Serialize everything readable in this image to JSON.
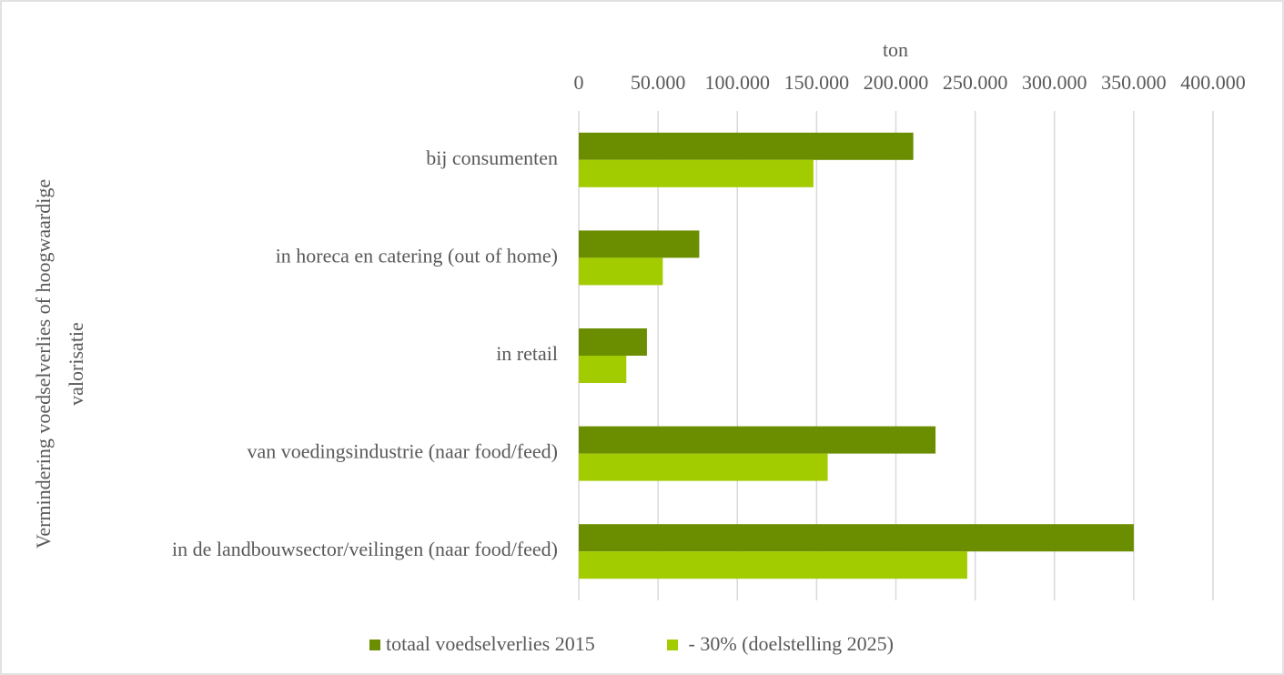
{
  "chart_data": {
    "type": "hbar",
    "x_label": "ton",
    "y_label": [
      "Vermindering  voedselverlies of hoogwaardige",
      "valorisatie"
    ],
    "categories": [
      "bij consumenten",
      "in horeca en catering (out of home)",
      "in retail",
      "van voedingsindustrie (naar food/feed)",
      "in de landbouwsector/veilingen (naar food/feed)"
    ],
    "series": [
      {
        "name": "totaal voedselverlies 2015",
        "color": "#6b8e00",
        "values": [
          211000,
          76000,
          43000,
          225000,
          350000
        ]
      },
      {
        "name": " - 30% (doelstelling 2025)",
        "color": "#a2cc00",
        "values": [
          148000,
          53000,
          30000,
          157000,
          245000
        ]
      }
    ],
    "xlim": [
      0,
      400000
    ],
    "xticks": [
      0,
      {
        "value": 50000,
        "label": "50.000"
      },
      {
        "value": 100000,
        "label": "100.000"
      },
      {
        "value": 150000,
        "label": "150.000"
      },
      {
        "value": 200000,
        "label": "200.000"
      },
      {
        "value": 250000,
        "label": "250.000"
      },
      {
        "value": 300000,
        "label": "300.000"
      },
      {
        "value": 350000,
        "label": "350.000"
      },
      {
        "value": 400000,
        "label": "400.000"
      }
    ],
    "grid": true,
    "legend": "bottom"
  }
}
